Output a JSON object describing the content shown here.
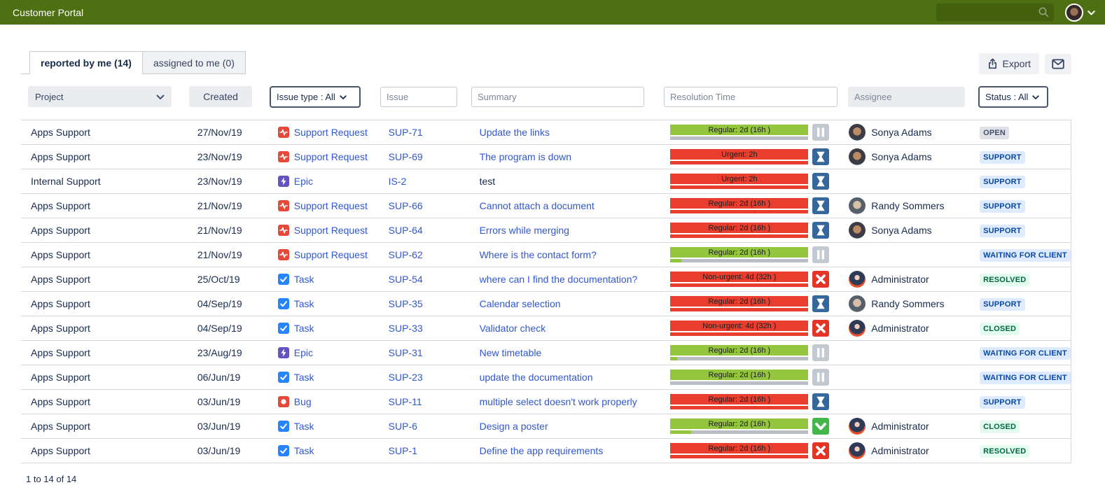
{
  "topbar": {
    "title": "Customer Portal",
    "search_value": ""
  },
  "tabs": [
    {
      "label": "reported by me (14)",
      "active": true
    },
    {
      "label": "assigned to me (0)",
      "active": false
    }
  ],
  "toolbar": {
    "export_label": "Export",
    "mail_icon": "envelope-icon"
  },
  "filters": {
    "project_label": "Project",
    "created_label": "Created",
    "issue_type_label": "Issue type : All",
    "issue_placeholder": "Issue",
    "summary_placeholder": "Summary",
    "resolution_placeholder": "Resolution Time",
    "assignee_placeholder": "Assignee",
    "status_label": "Status : All"
  },
  "colors": {
    "topbar_green": "#4e7013",
    "link_blue": "#3257cd",
    "sla_green": "#94c63d",
    "sla_red": "#e93e2e",
    "badge_open_bg": "#dfe1e6",
    "badge_blue_bg": "#deebff",
    "badge_blue_text": "#0747a6",
    "badge_green_bg": "#e3fcef",
    "badge_green_text": "#006644"
  },
  "rows": [
    {
      "project": "Apps Support",
      "created": "27/Nov/19",
      "type": {
        "kind": "support-request",
        "label": "Support Request"
      },
      "key": "SUP-71",
      "summary": "Update the links",
      "sla": {
        "label": "Regular: 2d (16h )",
        "tone": "green",
        "progress_pct": 0
      },
      "timer": "pause",
      "assignee": {
        "name": "Sonya Adams",
        "avatar": "sonya"
      },
      "status": {
        "label": "OPEN",
        "tone": "open"
      }
    },
    {
      "project": "Apps Support",
      "created": "23/Nov/19",
      "type": {
        "kind": "support-request",
        "label": "Support Request"
      },
      "key": "SUP-69",
      "summary": "The program is down",
      "sla": {
        "label": "Urgent: 2h",
        "tone": "red",
        "progress_pct": 100
      },
      "timer": "hourglass",
      "assignee": {
        "name": "Sonya Adams",
        "avatar": "sonya"
      },
      "status": {
        "label": "SUPPORT",
        "tone": "blue"
      }
    },
    {
      "project": "Internal Support",
      "created": "23/Nov/19",
      "type": {
        "kind": "epic",
        "label": "Epic"
      },
      "key": "IS-2",
      "summary": "test",
      "summary_dark": true,
      "sla": {
        "label": "Urgent: 2h",
        "tone": "red",
        "progress_pct": 100
      },
      "timer": "hourglass",
      "assignee": null,
      "status": {
        "label": "SUPPORT",
        "tone": "blue"
      }
    },
    {
      "project": "Apps Support",
      "created": "21/Nov/19",
      "type": {
        "kind": "support-request",
        "label": "Support Request"
      },
      "key": "SUP-66",
      "summary": "Cannot attach a document",
      "sla": {
        "label": "Regular: 2d (16h )",
        "tone": "red",
        "progress_pct": 100
      },
      "timer": "hourglass",
      "assignee": {
        "name": "Randy Sommers",
        "avatar": "randy"
      },
      "status": {
        "label": "SUPPORT",
        "tone": "blue"
      }
    },
    {
      "project": "Apps Support",
      "created": "21/Nov/19",
      "type": {
        "kind": "support-request",
        "label": "Support Request"
      },
      "key": "SUP-64",
      "summary": "Errors while merging",
      "sla": {
        "label": "Regular: 2d (16h )",
        "tone": "red",
        "progress_pct": 100
      },
      "timer": "hourglass",
      "assignee": {
        "name": "Sonya Adams",
        "avatar": "sonya"
      },
      "status": {
        "label": "SUPPORT",
        "tone": "blue"
      }
    },
    {
      "project": "Apps Support",
      "created": "21/Nov/19",
      "type": {
        "kind": "support-request",
        "label": "Support Request"
      },
      "key": "SUP-62",
      "summary": "Where is the contact form?",
      "sla": {
        "label": "Regular: 2d (16h )",
        "tone": "green",
        "progress_pct": 8
      },
      "timer": "pause",
      "assignee": null,
      "status": {
        "label": "WAITING FOR CLIENT",
        "tone": "blue"
      }
    },
    {
      "project": "Apps Support",
      "created": "25/Oct/19",
      "type": {
        "kind": "task",
        "label": "Task"
      },
      "key": "SUP-54",
      "summary": "where can I find the documentation?",
      "sla": {
        "label": "Non-urgent: 4d (32h )",
        "tone": "red",
        "progress_pct": 100
      },
      "timer": "x",
      "assignee": {
        "name": "Administrator",
        "avatar": "admin"
      },
      "status": {
        "label": "RESOLVED",
        "tone": "green"
      }
    },
    {
      "project": "Apps Support",
      "created": "04/Sep/19",
      "type": {
        "kind": "task",
        "label": "Task"
      },
      "key": "SUP-35",
      "summary": "Calendar selection",
      "sla": {
        "label": "Regular: 2d (16h )",
        "tone": "red",
        "progress_pct": 100
      },
      "timer": "hourglass",
      "assignee": {
        "name": "Randy Sommers",
        "avatar": "randy"
      },
      "status": {
        "label": "SUPPORT",
        "tone": "blue"
      }
    },
    {
      "project": "Apps Support",
      "created": "04/Sep/19",
      "type": {
        "kind": "task",
        "label": "Task"
      },
      "key": "SUP-33",
      "summary": "Validator check",
      "sla": {
        "label": "Non-urgent: 4d (32h )",
        "tone": "red",
        "progress_pct": 100
      },
      "timer": "x",
      "assignee": {
        "name": "Administrator",
        "avatar": "admin"
      },
      "status": {
        "label": "CLOSED",
        "tone": "green"
      }
    },
    {
      "project": "Apps Support",
      "created": "23/Aug/19",
      "type": {
        "kind": "epic",
        "label": "Epic"
      },
      "key": "SUP-31",
      "summary": "New timetable",
      "sla": {
        "label": "Regular: 2d (16h )",
        "tone": "green",
        "progress_pct": 5
      },
      "timer": "pause",
      "assignee": null,
      "status": {
        "label": "WAITING FOR CLIENT",
        "tone": "blue"
      }
    },
    {
      "project": "Apps Support",
      "created": "06/Jun/19",
      "type": {
        "kind": "task",
        "label": "Task"
      },
      "key": "SUP-23",
      "summary": "update the documentation",
      "sla": {
        "label": "Regular: 2d (16h )",
        "tone": "green",
        "progress_pct": 0
      },
      "timer": "pause",
      "assignee": null,
      "status": {
        "label": "WAITING FOR CLIENT",
        "tone": "blue"
      }
    },
    {
      "project": "Apps Support",
      "created": "03/Jun/19",
      "type": {
        "kind": "bug",
        "label": "Bug"
      },
      "key": "SUP-11",
      "summary": "multiple select doesn't work properly",
      "sla": {
        "label": "Regular: 2d (16h )",
        "tone": "red",
        "progress_pct": 100
      },
      "timer": "hourglass",
      "assignee": null,
      "status": {
        "label": "SUPPORT",
        "tone": "blue"
      }
    },
    {
      "project": "Apps Support",
      "created": "03/Jun/19",
      "type": {
        "kind": "task",
        "label": "Task"
      },
      "key": "SUP-6",
      "summary": "Design a poster",
      "sla": {
        "label": "Regular: 2d (16h )",
        "tone": "green",
        "progress_pct": 15
      },
      "timer": "check",
      "assignee": {
        "name": "Administrator",
        "avatar": "admin"
      },
      "status": {
        "label": "CLOSED",
        "tone": "green"
      }
    },
    {
      "project": "Apps Support",
      "created": "03/Jun/19",
      "type": {
        "kind": "task",
        "label": "Task"
      },
      "key": "SUP-1",
      "summary": "Define the app requirements",
      "sla": {
        "label": "Regular: 2d (16h )",
        "tone": "red",
        "progress_pct": 100
      },
      "timer": "x",
      "assignee": {
        "name": "Administrator",
        "avatar": "admin"
      },
      "status": {
        "label": "RESOLVED",
        "tone": "green"
      }
    }
  ],
  "footer": {
    "pagination": "1 to 14 of 14"
  }
}
